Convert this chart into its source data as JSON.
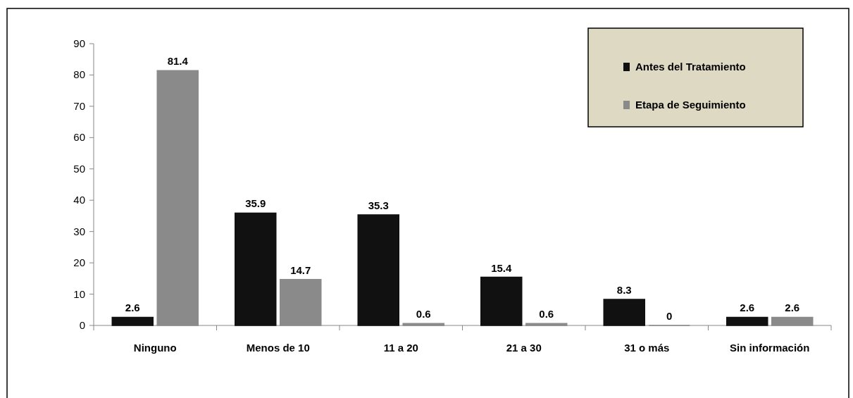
{
  "chart_data": {
    "type": "bar",
    "categories": [
      "Ninguno",
      "Menos de 10",
      "11 a 20",
      "21 a 30",
      "31 o más",
      "Sin información"
    ],
    "series": [
      {
        "name": "Antes del Tratamiento",
        "color": "#111111",
        "values": [
          2.6,
          35.9,
          35.3,
          15.4,
          8.3,
          2.6
        ]
      },
      {
        "name": "Etapa de Seguimiento",
        "color": "#8a8a8a",
        "values": [
          81.4,
          14.7,
          0.6,
          0.6,
          0,
          2.6
        ]
      }
    ],
    "ylim": [
      0,
      90
    ],
    "yticks": [
      0,
      10,
      20,
      30,
      40,
      50,
      60,
      70,
      80,
      90
    ],
    "data_labels": true,
    "legend": "top right",
    "grid": false
  }
}
